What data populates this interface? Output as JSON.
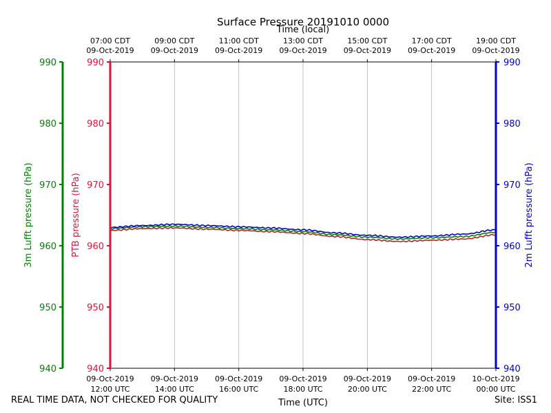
{
  "chart_data": {
    "type": "line",
    "title": "Surface Pressure 20191010 0000",
    "xlabel_bottom": "Time (UTC)",
    "xlabel_top": "Time (local)",
    "x_range": [
      "2019-10-09 12:00 UTC",
      "2019-10-10 00:00 UTC"
    ],
    "bottom_ticks": [
      {
        "line1": "09-Oct-2019",
        "line2": "12:00 UTC"
      },
      {
        "line1": "09-Oct-2019",
        "line2": "14:00 UTC"
      },
      {
        "line1": "09-Oct-2019",
        "line2": "16:00 UTC"
      },
      {
        "line1": "09-Oct-2019",
        "line2": "18:00 UTC"
      },
      {
        "line1": "09-Oct-2019",
        "line2": "20:00 UTC"
      },
      {
        "line1": "09-Oct-2019",
        "line2": "22:00 UTC"
      },
      {
        "line1": "10-Oct-2019",
        "line2": "00:00 UTC"
      }
    ],
    "top_ticks": [
      {
        "line1": "07:00 CDT",
        "line2": "09-Oct-2019"
      },
      {
        "line1": "09:00 CDT",
        "line2": "09-Oct-2019"
      },
      {
        "line1": "11:00 CDT",
        "line2": "09-Oct-2019"
      },
      {
        "line1": "13:00 CDT",
        "line2": "09-Oct-2019"
      },
      {
        "line1": "15:00 CDT",
        "line2": "09-Oct-2019"
      },
      {
        "line1": "17:00 CDT",
        "line2": "09-Oct-2019"
      },
      {
        "line1": "19:00 CDT",
        "line2": "09-Oct-2019"
      }
    ],
    "y_axes": [
      {
        "id": "lufft3m",
        "label": "3m Lufft pressure (hPa)",
        "color": "#008000",
        "ylim": [
          940,
          990
        ],
        "ticks": [
          "940",
          "950",
          "960",
          "970",
          "980",
          "990"
        ]
      },
      {
        "id": "ptb",
        "label": "PTB pressure (hPa)",
        "color": "#dc143c",
        "ylim": [
          940,
          990
        ],
        "ticks": [
          "940",
          "950",
          "960",
          "970",
          "980",
          "990"
        ]
      },
      {
        "id": "lufft2m",
        "label": "2m Lufft pressure (hPa)",
        "color": "#0000cd",
        "ylim": [
          940,
          990
        ],
        "ticks": [
          "940",
          "950",
          "960",
          "970",
          "980",
          "990"
        ]
      }
    ],
    "grid": "vertical",
    "series": [
      {
        "axis": "ptb",
        "color": "#b22222",
        "x_hours_utc": [
          12,
          13,
          14,
          15,
          16,
          17,
          18,
          19,
          20,
          21,
          22,
          23,
          24
        ],
        "values": [
          962.5,
          962.8,
          962.9,
          962.7,
          962.5,
          962.3,
          962.0,
          961.5,
          961.0,
          960.7,
          960.9,
          961.1,
          961.8
        ]
      },
      {
        "axis": "lufft3m",
        "color": "#008000",
        "x_hours_utc": [
          12,
          13,
          14,
          15,
          16,
          17,
          18,
          19,
          20,
          21,
          22,
          23,
          24
        ],
        "values": [
          962.8,
          963.1,
          963.2,
          963.0,
          962.8,
          962.6,
          962.3,
          961.8,
          961.4,
          961.1,
          961.3,
          961.5,
          962.2
        ]
      },
      {
        "axis": "lufft2m",
        "color": "#0000cd",
        "x_hours_utc": [
          12,
          13,
          14,
          15,
          16,
          17,
          18,
          19,
          20,
          21,
          22,
          23,
          24
        ],
        "values": [
          963.0,
          963.3,
          963.5,
          963.3,
          963.1,
          962.9,
          962.6,
          962.1,
          961.7,
          961.4,
          961.6,
          961.9,
          962.6
        ]
      }
    ]
  },
  "footer": {
    "quality_note": "REAL TIME DATA, NOT CHECKED FOR QUALITY",
    "site": "Site: ISS1"
  }
}
